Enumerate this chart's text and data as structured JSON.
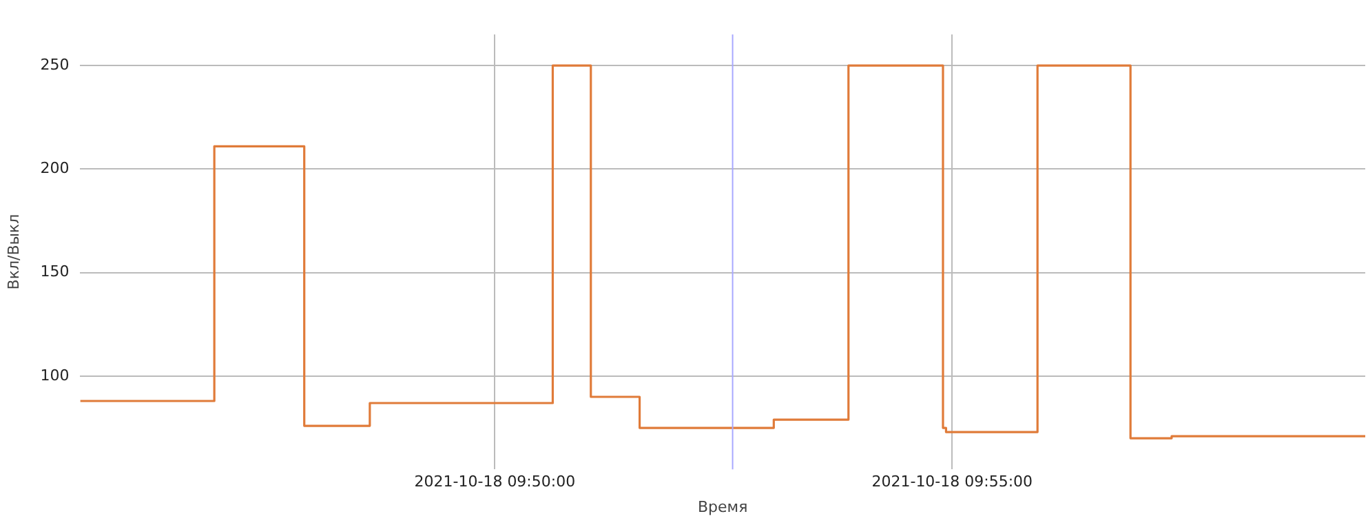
{
  "chart_data": {
    "type": "step",
    "xlabel": "Время",
    "ylabel": "Вкл/Выкл",
    "x": [
      "2021-10-18T09:45:28",
      "2021-10-18T09:46:56",
      "2021-10-18T09:47:55",
      "2021-10-18T09:48:38",
      "2021-10-18T09:50:38",
      "2021-10-18T09:51:03",
      "2021-10-18T09:51:35",
      "2021-10-18T09:53:03",
      "2021-10-18T09:53:52",
      "2021-10-18T09:54:54",
      "2021-10-18T09:54:56",
      "2021-10-18T09:55:56",
      "2021-10-18T09:56:57",
      "2021-10-18T09:57:24",
      "2021-10-18T09:59:31"
    ],
    "series": [
      {
        "color": "#e07b39",
        "values": [
          88,
          211,
          76,
          87,
          250,
          90,
          75,
          79,
          250,
          75,
          73,
          250,
          70,
          71,
          71
        ]
      }
    ],
    "xlim": [
      "2021-10-18T09:45:28",
      "2021-10-18T09:59:31"
    ],
    "xticks": [
      {
        "value": "2021-10-18T09:50:00",
        "label": "2021-10-18 09:50:00"
      },
      {
        "value": "2021-10-18T09:55:00",
        "label": "2021-10-18 09:55:00"
      }
    ],
    "ylim": [
      55,
      265
    ],
    "yticks": [
      100,
      150,
      200,
      250
    ],
    "ref_lines": [
      {
        "axis": "x",
        "value": "2021-10-18T09:52:36",
        "color": "#a8a8ff"
      }
    ],
    "grid": true,
    "legend": false,
    "marker": "none",
    "line_style": "solid"
  }
}
